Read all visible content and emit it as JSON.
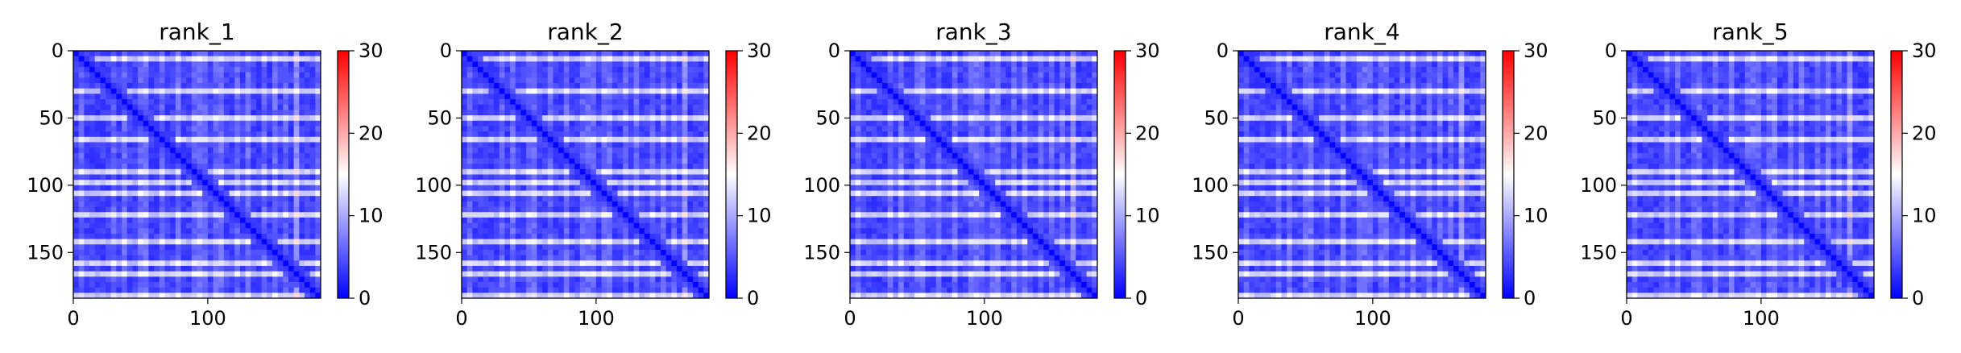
{
  "chart_data": [
    {
      "type": "heatmap",
      "title": "rank_1",
      "matrix_size": 184,
      "xlim": [
        0,
        184
      ],
      "ylim": [
        184,
        0
      ],
      "xticks": [
        0,
        100
      ],
      "yticks": [
        0,
        50,
        100,
        150
      ],
      "colorbar": {
        "range": [
          0,
          30
        ],
        "ticks": [
          0,
          10,
          20,
          30
        ],
        "cmap": "bwr",
        "colors": [
          "#0000ff",
          "#ffffff",
          "#ff0000"
        ]
      },
      "bright_rows": [
        5,
        30,
        48,
        66,
        88,
        97,
        106,
        122,
        142,
        157,
        167,
        180
      ],
      "bright_cols": [
        36,
        55,
        78,
        95,
        110,
        130,
        150,
        165
      ]
    },
    {
      "type": "heatmap",
      "title": "rank_2",
      "matrix_size": 184,
      "xlim": [
        0,
        184
      ],
      "ylim": [
        184,
        0
      ],
      "xticks": [
        0,
        100
      ],
      "yticks": [
        0,
        50,
        100,
        150
      ],
      "colorbar": {
        "range": [
          0,
          30
        ],
        "ticks": [
          0,
          10,
          20,
          30
        ],
        "cmap": "bwr",
        "colors": [
          "#0000ff",
          "#ffffff",
          "#ff0000"
        ]
      },
      "bright_rows": [
        5,
        30,
        48,
        66,
        88,
        97,
        106,
        122,
        142,
        157,
        167,
        180
      ],
      "bright_cols": [
        36,
        55,
        78,
        95,
        110,
        130,
        150,
        165
      ]
    },
    {
      "type": "heatmap",
      "title": "rank_3",
      "matrix_size": 184,
      "xlim": [
        0,
        184
      ],
      "ylim": [
        184,
        0
      ],
      "xticks": [
        0,
        100
      ],
      "yticks": [
        0,
        50,
        100,
        150
      ],
      "colorbar": {
        "range": [
          0,
          30
        ],
        "ticks": [
          0,
          10,
          20,
          30
        ],
        "cmap": "bwr",
        "colors": [
          "#0000ff",
          "#ffffff",
          "#ff0000"
        ]
      },
      "bright_rows": [
        5,
        30,
        48,
        66,
        88,
        97,
        106,
        122,
        142,
        157,
        167,
        180
      ],
      "bright_cols": [
        36,
        55,
        78,
        95,
        110,
        130,
        150,
        165
      ]
    },
    {
      "type": "heatmap",
      "title": "rank_4",
      "matrix_size": 184,
      "xlim": [
        0,
        184
      ],
      "ylim": [
        184,
        0
      ],
      "xticks": [
        0,
        100
      ],
      "yticks": [
        0,
        50,
        100,
        150
      ],
      "colorbar": {
        "range": [
          0,
          30
        ],
        "ticks": [
          0,
          10,
          20,
          30
        ],
        "cmap": "bwr",
        "colors": [
          "#0000ff",
          "#ffffff",
          "#ff0000"
        ]
      },
      "bright_rows": [
        5,
        30,
        48,
        66,
        88,
        97,
        106,
        122,
        142,
        157,
        167,
        180
      ],
      "bright_cols": [
        36,
        55,
        78,
        95,
        110,
        130,
        150,
        165
      ]
    },
    {
      "type": "heatmap",
      "title": "rank_5",
      "matrix_size": 184,
      "xlim": [
        0,
        184
      ],
      "ylim": [
        184,
        0
      ],
      "xticks": [
        0,
        100
      ],
      "yticks": [
        0,
        50,
        100,
        150
      ],
      "colorbar": {
        "range": [
          0,
          30
        ],
        "ticks": [
          0,
          10,
          20,
          30
        ],
        "cmap": "bwr",
        "colors": [
          "#0000ff",
          "#ffffff",
          "#ff0000"
        ]
      },
      "bright_rows": [
        5,
        30,
        48,
        66,
        88,
        97,
        106,
        122,
        142,
        157,
        167,
        180
      ],
      "bright_cols": [
        36,
        55,
        78,
        95,
        110,
        130,
        150,
        165
      ]
    }
  ]
}
